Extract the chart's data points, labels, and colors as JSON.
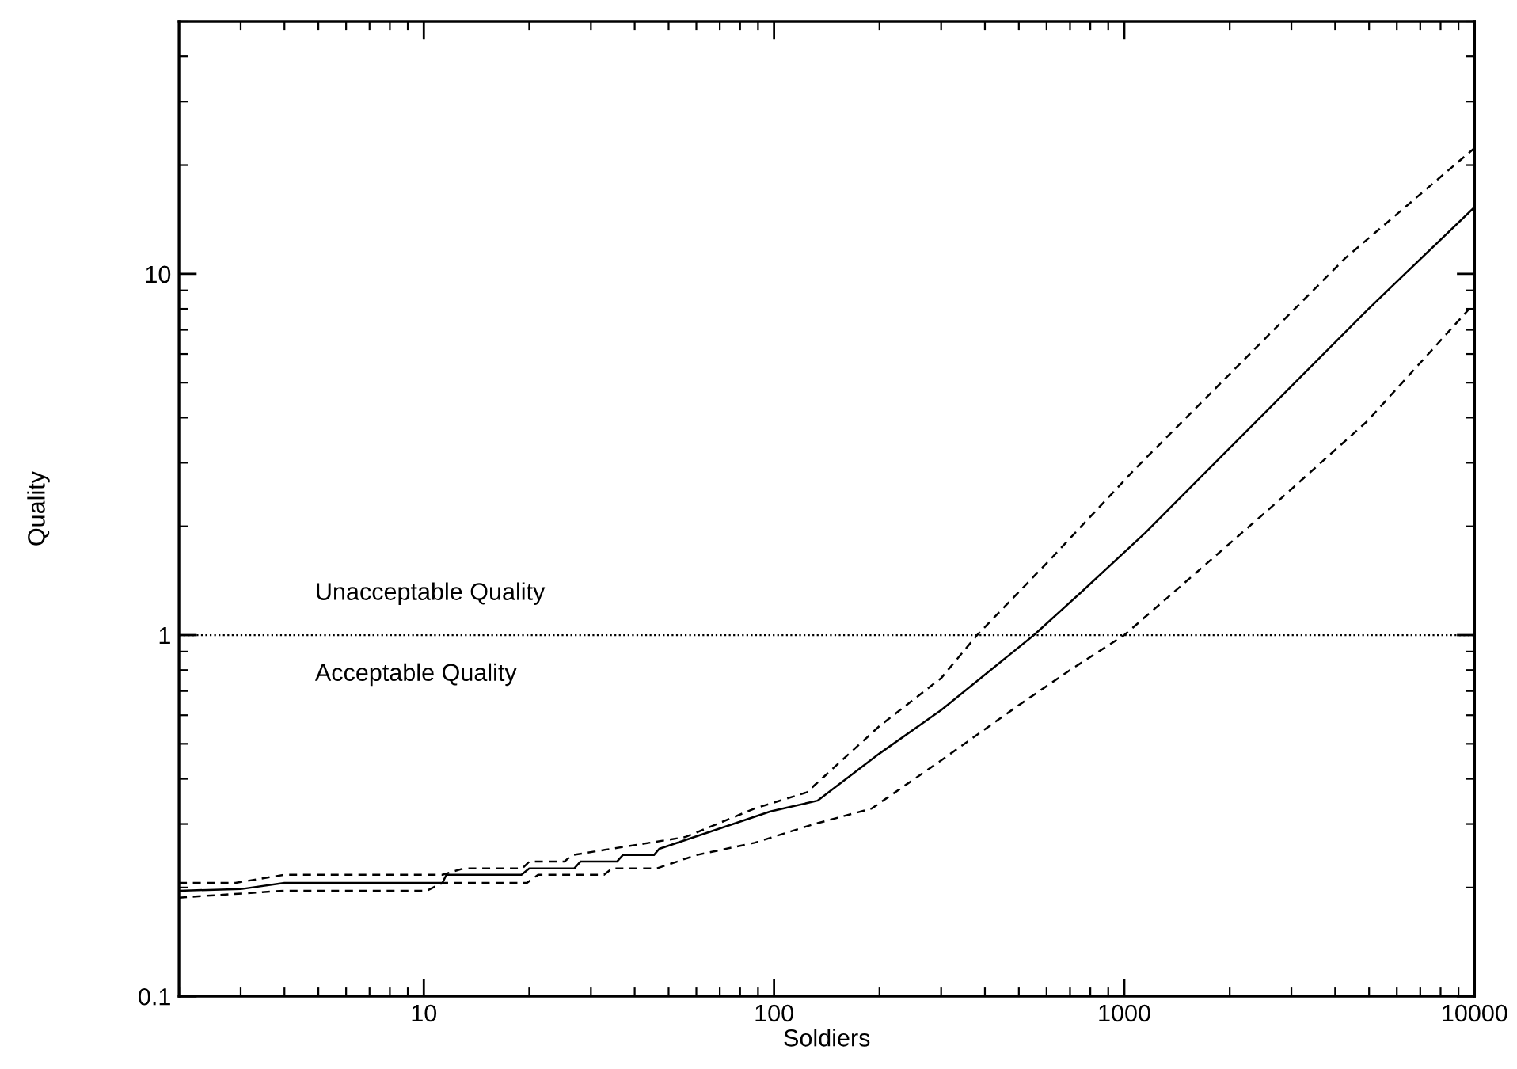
{
  "chart_data": {
    "type": "line",
    "xlabel": "Soldiers",
    "ylabel": "Quality",
    "log": "xy",
    "grid": false,
    "legend": false,
    "marker": "none",
    "xlim": [
      2,
      10000
    ],
    "ylim": [
      0.1,
      50
    ],
    "xticks": [
      10,
      100,
      1000,
      10000
    ],
    "yticks": [
      0.1,
      1,
      10
    ],
    "ref_lines": [
      {
        "axis": "y",
        "value": 1,
        "color": "#000000",
        "line_style": "dotted"
      }
    ],
    "annotations": [
      "Unacceptable Quality",
      "Acceptable Quality"
    ],
    "series": [
      {
        "color": "#000000",
        "line_style": "dashed",
        "x": [
          2,
          2.9,
          4,
          11.3,
          13,
          19.1,
          20,
          25.2,
          26.5,
          55.8,
          88,
          124,
          200,
          300,
          380,
          615,
          1072,
          2148,
          4295,
          10000
        ],
        "values": [
          0.206,
          0.206,
          0.217,
          0.217,
          0.226,
          0.226,
          0.236,
          0.236,
          0.246,
          0.276,
          0.331,
          0.367,
          0.56,
          0.76,
          1,
          1.62,
          2.88,
          5.66,
          11.1,
          22.3
        ]
      },
      {
        "color": "#000000",
        "line_style": "solid",
        "x": [
          2,
          3,
          4,
          11.3,
          11.6,
          19,
          20,
          26.9,
          28,
          35.6,
          37,
          45.4,
          47,
          97.6,
          133,
          200,
          300,
          552,
          757,
          1148,
          1866,
          3040,
          4940,
          10000
        ],
        "values": [
          0.196,
          0.198,
          0.206,
          0.206,
          0.217,
          0.217,
          0.226,
          0.226,
          0.236,
          0.236,
          0.246,
          0.246,
          0.256,
          0.325,
          0.348,
          0.47,
          0.62,
          1,
          1.32,
          1.92,
          3.08,
          4.95,
          7.94,
          15.3
        ]
      },
      {
        "color": "#000000",
        "line_style": "dashed",
        "x": [
          2,
          4,
          10.2,
          11.3,
          19.7,
          21.2,
          32.7,
          34.5,
          46.3,
          60,
          87.9,
          129,
          190,
          300,
          500,
          700,
          1000,
          1517,
          2642,
          4940,
          10000
        ],
        "values": [
          0.1875,
          0.196,
          0.196,
          0.206,
          0.206,
          0.217,
          0.217,
          0.226,
          0.226,
          0.246,
          0.266,
          0.299,
          0.331,
          0.45,
          0.64,
          0.8,
          1,
          1.42,
          2.27,
          3.91,
          8.3
        ]
      }
    ]
  }
}
